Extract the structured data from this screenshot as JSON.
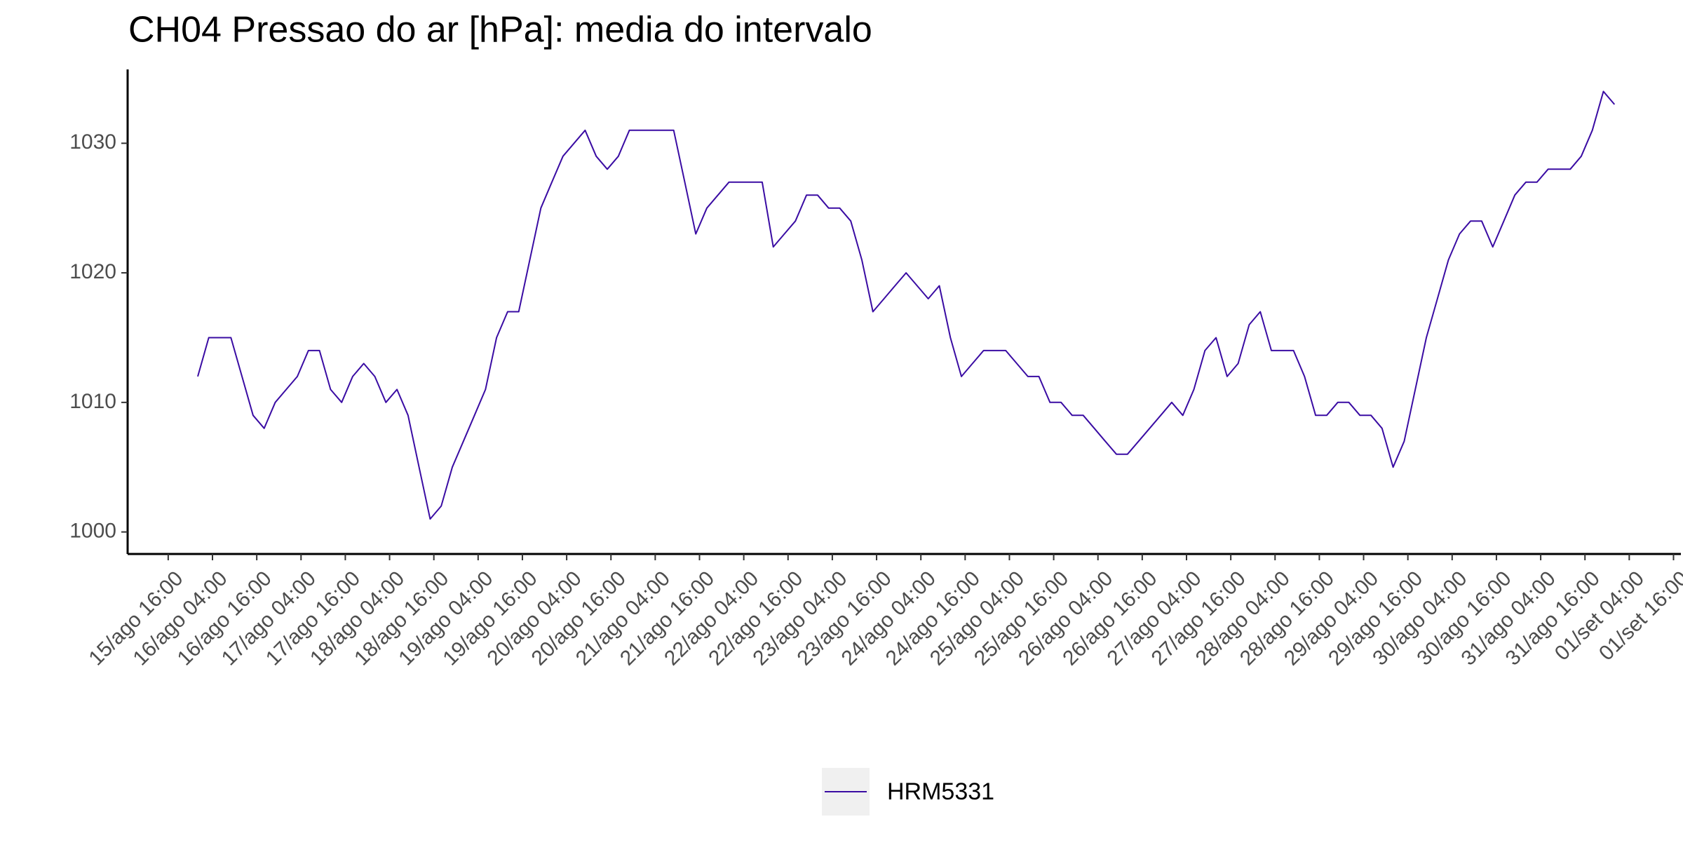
{
  "chart_data": {
    "type": "line",
    "title": "CH04 Pressao do ar [hPa]: media do intervalo",
    "x": [
      "16/ago 00:00",
      "16/ago 03:00",
      "16/ago 06:00",
      "16/ago 09:00",
      "16/ago 12:00",
      "16/ago 15:00",
      "16/ago 18:00",
      "16/ago 21:00",
      "17/ago 00:00",
      "17/ago 03:00",
      "17/ago 06:00",
      "17/ago 09:00",
      "17/ago 12:00",
      "17/ago 15:00",
      "17/ago 18:00",
      "17/ago 21:00",
      "18/ago 00:00",
      "18/ago 03:00",
      "18/ago 06:00",
      "18/ago 09:00",
      "18/ago 12:00",
      "18/ago 15:00",
      "18/ago 18:00",
      "18/ago 21:00",
      "19/ago 00:00",
      "19/ago 03:00",
      "19/ago 06:00",
      "19/ago 09:00",
      "19/ago 12:00",
      "19/ago 15:00",
      "19/ago 18:00",
      "19/ago 21:00",
      "20/ago 00:00",
      "20/ago 03:00",
      "20/ago 06:00",
      "20/ago 09:00",
      "20/ago 12:00",
      "20/ago 15:00",
      "20/ago 18:00",
      "20/ago 21:00",
      "21/ago 00:00",
      "21/ago 03:00",
      "21/ago 06:00",
      "21/ago 09:00",
      "21/ago 12:00",
      "21/ago 15:00",
      "21/ago 18:00",
      "21/ago 21:00",
      "22/ago 00:00",
      "22/ago 03:00",
      "22/ago 06:00",
      "22/ago 09:00",
      "22/ago 12:00",
      "22/ago 15:00",
      "22/ago 18:00",
      "22/ago 21:00",
      "23/ago 00:00",
      "23/ago 03:00",
      "23/ago 06:00",
      "23/ago 09:00",
      "23/ago 12:00",
      "23/ago 15:00",
      "23/ago 18:00",
      "23/ago 21:00",
      "24/ago 00:00",
      "24/ago 03:00",
      "24/ago 06:00",
      "24/ago 09:00",
      "24/ago 12:00",
      "24/ago 15:00",
      "24/ago 18:00",
      "24/ago 21:00",
      "25/ago 00:00",
      "25/ago 03:00",
      "25/ago 06:00",
      "25/ago 09:00",
      "25/ago 12:00",
      "25/ago 15:00",
      "25/ago 18:00",
      "25/ago 21:00",
      "26/ago 00:00",
      "26/ago 03:00",
      "26/ago 06:00",
      "26/ago 09:00",
      "26/ago 12:00",
      "26/ago 15:00",
      "26/ago 18:00",
      "26/ago 21:00",
      "27/ago 00:00",
      "27/ago 03:00",
      "27/ago 06:00",
      "27/ago 09:00",
      "27/ago 12:00",
      "27/ago 15:00",
      "27/ago 18:00",
      "27/ago 21:00",
      "28/ago 00:00",
      "28/ago 03:00",
      "28/ago 06:00",
      "28/ago 09:00",
      "28/ago 12:00",
      "28/ago 15:00",
      "28/ago 18:00",
      "28/ago 21:00",
      "29/ago 00:00",
      "29/ago 03:00",
      "29/ago 06:00",
      "29/ago 09:00",
      "29/ago 12:00",
      "29/ago 15:00",
      "29/ago 18:00",
      "29/ago 21:00",
      "30/ago 00:00",
      "30/ago 03:00",
      "30/ago 06:00",
      "30/ago 09:00",
      "30/ago 12:00",
      "30/ago 15:00",
      "30/ago 18:00",
      "30/ago 21:00",
      "31/ago 00:00",
      "31/ago 03:00",
      "31/ago 06:00",
      "31/ago 09:00",
      "31/ago 12:00",
      "31/ago 15:00",
      "31/ago 18:00",
      "31/ago 21:00",
      "01/set 00:00"
    ],
    "series": [
      {
        "name": "HRM5331",
        "color": "#3a0ca3",
        "values": [
          1012,
          1015,
          1015,
          1015,
          1012,
          1009,
          1008,
          1010,
          1011,
          1012,
          1014,
          1014,
          1011,
          1010,
          1012,
          1013,
          1012,
          1010,
          1011,
          1009,
          1005,
          1001,
          1002,
          1005,
          1007,
          1009,
          1011,
          1015,
          1017,
          1017,
          1021,
          1025,
          1027,
          1029,
          1030,
          1031,
          1029,
          1028,
          1029,
          1031,
          1031,
          1031,
          1031,
          1031,
          1027,
          1023,
          1025,
          1026,
          1027,
          1027,
          1027,
          1027,
          1022,
          1023,
          1024,
          1026,
          1026,
          1025,
          1025,
          1024,
          1021,
          1017,
          1018,
          1019,
          1020,
          1019,
          1018,
          1019,
          1015,
          1012,
          1013,
          1014,
          1014,
          1014,
          1013,
          1012,
          1012,
          1010,
          1010,
          1009,
          1009,
          1008,
          1007,
          1006,
          1006,
          1007,
          1008,
          1009,
          1010,
          1009,
          1011,
          1014,
          1015,
          1012,
          1013,
          1016,
          1017,
          1014,
          1014,
          1014,
          1012,
          1009,
          1009,
          1010,
          1010,
          1009,
          1009,
          1008,
          1005,
          1007,
          1011,
          1015,
          1018,
          1021,
          1023,
          1024,
          1024,
          1022,
          1024,
          1026,
          1027,
          1027,
          1028,
          1028,
          1028,
          1029,
          1031,
          1034,
          1033
        ]
      }
    ],
    "xlim": [
      "15/ago 05:00",
      "01/set 18:00"
    ],
    "xticks": [
      "15/ago 16:00",
      "16/ago 04:00",
      "16/ago 16:00",
      "17/ago 04:00",
      "17/ago 16:00",
      "18/ago 04:00",
      "18/ago 16:00",
      "19/ago 04:00",
      "19/ago 16:00",
      "20/ago 04:00",
      "20/ago 16:00",
      "21/ago 04:00",
      "21/ago 16:00",
      "22/ago 04:00",
      "22/ago 16:00",
      "23/ago 04:00",
      "23/ago 16:00",
      "24/ago 04:00",
      "24/ago 16:00",
      "25/ago 04:00",
      "25/ago 16:00",
      "26/ago 04:00",
      "26/ago 16:00",
      "27/ago 04:00",
      "27/ago 16:00",
      "28/ago 04:00",
      "28/ago 16:00",
      "29/ago 04:00",
      "29/ago 16:00",
      "30/ago 04:00",
      "30/ago 16:00",
      "31/ago 04:00",
      "31/ago 16:00",
      "01/set 04:00",
      "01/set 16:00"
    ],
    "ylim": [
      998.3,
      1035.7
    ],
    "yticks": [
      1000,
      1010,
      1020,
      1030
    ],
    "grid": false,
    "legend": "bottom"
  }
}
